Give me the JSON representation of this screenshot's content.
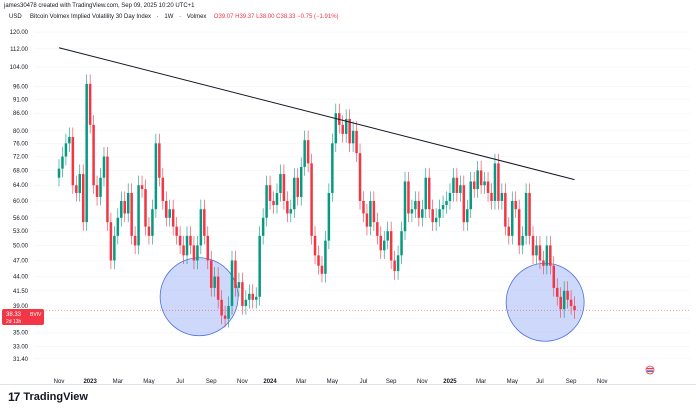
{
  "header": {
    "attribution": "james30478 created with TradingView.com, Sep 09, 2025 10:20 UTC+1"
  },
  "symbol": {
    "currency": "USD",
    "name": "Bitcoin Volmex Implied Volatility 30 Day Index",
    "interval": "1W",
    "source": "Volmex",
    "ohlc": "O39.07 H39.37 L38.00 C38.33 −0.75 (−1.91%)"
  },
  "price_label": {
    "value": "38.33",
    "badge": "BVIV",
    "countdown": "2d 13h"
  },
  "footer": {
    "brand": "TradingView",
    "logo_glyph": "17"
  },
  "colors": {
    "up": "#089981",
    "down": "#f23645",
    "trendline": "#131722",
    "circle_fill": "#a6b8f5",
    "circle_stroke": "#4a6fe3"
  },
  "chart_data": {
    "type": "candlestick",
    "y_scale": "log",
    "ylim": [
      29.5,
      123
    ],
    "yticks": [
      31.4,
      33.0,
      35.0,
      37.0,
      39.0,
      41.5,
      44.0,
      47.0,
      50.0,
      53.0,
      56.0,
      60.0,
      64.0,
      68.0,
      72.0,
      76.0,
      80.0,
      86.0,
      91.0,
      96.0,
      104.0,
      112.0,
      120.0
    ],
    "xticks": [
      {
        "label": "Nov",
        "week": 0,
        "bold": false
      },
      {
        "label": "2023",
        "week": 9,
        "bold": true
      },
      {
        "label": "Mar",
        "week": 17,
        "bold": false
      },
      {
        "label": "May",
        "week": 26,
        "bold": false
      },
      {
        "label": "Jul",
        "week": 35,
        "bold": false
      },
      {
        "label": "Sep",
        "week": 44,
        "bold": false
      },
      {
        "label": "Nov",
        "week": 53,
        "bold": false
      },
      {
        "label": "2024",
        "week": 61,
        "bold": true
      },
      {
        "label": "Mar",
        "week": 70,
        "bold": false
      },
      {
        "label": "May",
        "week": 79,
        "bold": false
      },
      {
        "label": "Jul",
        "week": 88,
        "bold": false
      },
      {
        "label": "Sep",
        "week": 96,
        "bold": false
      },
      {
        "label": "Nov",
        "week": 105,
        "bold": false
      },
      {
        "label": "2025",
        "week": 113,
        "bold": true
      },
      {
        "label": "Mar",
        "week": 122,
        "bold": false
      },
      {
        "label": "May",
        "week": 131,
        "bold": false
      },
      {
        "label": "Jul",
        "week": 139,
        "bold": false
      },
      {
        "label": "Sep",
        "week": 148,
        "bold": false
      },
      {
        "label": "Nov",
        "week": 157,
        "bold": false
      }
    ],
    "trendline": {
      "from": {
        "week": 0,
        "value": 112.5
      },
      "to": {
        "week": 149,
        "value": 65.5
      }
    },
    "highlight_circles": [
      {
        "center_week": 40.5,
        "center_value": 40.5
      },
      {
        "center_week": 140.5,
        "center_value": 39.6
      }
    ],
    "last_week": 149,
    "candles_close": [
      68.5,
      72.0,
      76.0,
      78.0,
      64.0,
      62.0,
      67.0,
      55.0,
      97.0,
      82.0,
      64.0,
      61.0,
      66.0,
      72.0,
      55.0,
      47.0,
      52.0,
      56.0,
      60.0,
      57.0,
      62.0,
      52.0,
      50.0,
      64.0,
      63.0,
      54.0,
      52.0,
      58.0,
      76.0,
      66.0,
      60.0,
      56.0,
      58.0,
      54.0,
      52.0,
      50.0,
      48.0,
      52.0,
      50.0,
      47.0,
      50.0,
      58.0,
      52.0,
      47.0,
      42.0,
      44.0,
      40.0,
      37.5,
      37.0,
      39.0,
      47.0,
      42.0,
      43.0,
      39.0,
      40.0,
      41.0,
      40.0,
      40.5,
      52.0,
      56.0,
      64.0,
      60.0,
      59.0,
      62.0,
      67.0,
      60.0,
      57.0,
      58.0,
      66.0,
      61.0,
      69.0,
      77.0,
      70.0,
      52.0,
      48.0,
      46.0,
      44.5,
      51.0,
      62.0,
      76.0,
      86.0,
      82.0,
      79.0,
      84.0,
      76.0,
      80.0,
      73.0,
      60.0,
      57.0,
      54.0,
      60.0,
      55.0,
      52.0,
      49.0,
      51.0,
      53.0,
      47.0,
      45.0,
      48.0,
      53.0,
      65.0,
      57.0,
      58.0,
      60.0,
      56.0,
      58.0,
      66.0,
      58.0,
      55.0,
      56.0,
      58.0,
      59.0,
      60.0,
      62.0,
      66.0,
      62.0,
      64.0,
      55.0,
      58.0,
      65.0,
      63.0,
      68.0,
      64.0,
      65.0,
      62.0,
      60.0,
      70.0,
      60.0,
      62.0,
      54.0,
      52.0,
      60.0,
      58.0,
      50.0,
      52.0,
      62.0,
      52.0,
      48.0,
      50.0,
      47.0,
      46.0,
      50.0,
      46.0,
      42.0,
      40.5,
      38.5,
      41.5,
      40.0,
      39.0,
      38.33
    ]
  }
}
